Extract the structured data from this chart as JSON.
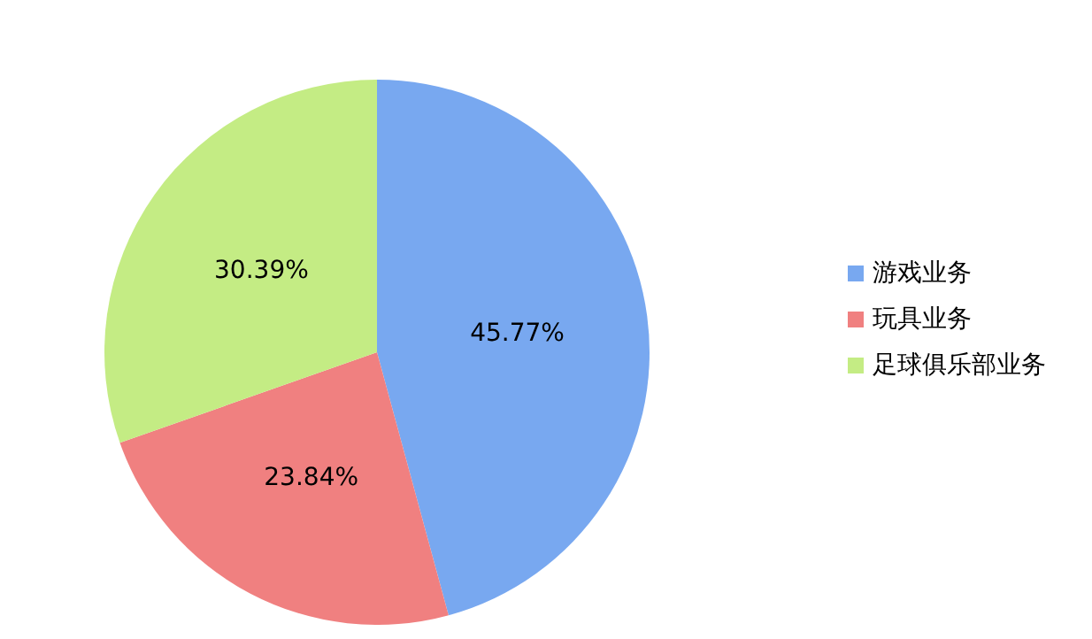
{
  "chart_data": {
    "type": "pie",
    "categories": [
      "游戏业务",
      "玩具业务",
      "足球俱乐部业务"
    ],
    "values": [
      45.77,
      23.84,
      30.39
    ],
    "colors": [
      "#78a8f0",
      "#f08080",
      "#c4ec84"
    ],
    "value_labels": [
      "45.77%",
      "23.84%",
      "30.39%"
    ],
    "legend": "right"
  }
}
